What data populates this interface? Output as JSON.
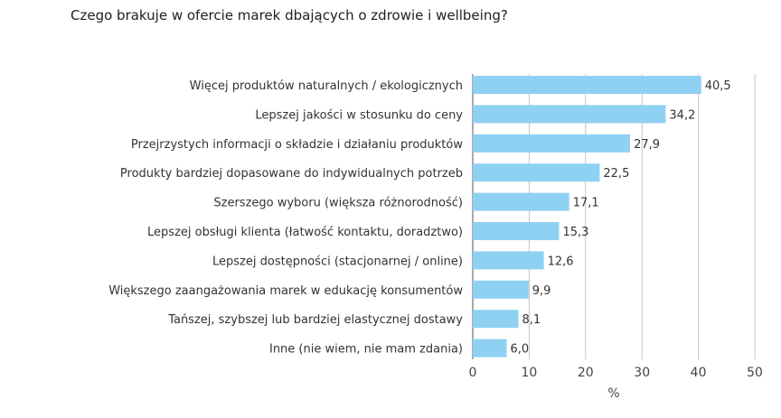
{
  "chart_data": {
    "type": "bar",
    "orientation": "horizontal",
    "title": "Czego brakuje w ofercie marek dbających o zdrowie i wellbeing?",
    "xlabel": "%",
    "ylabel": "",
    "xlim": [
      0,
      50
    ],
    "xticks": [
      "0",
      "10",
      "20",
      "30",
      "40",
      "50"
    ],
    "grid": true,
    "bar_color": "#8fd1f3",
    "categories": [
      "Więcej produktów naturalnych / ekologicznych",
      "Lepszej jakości w stosunku do ceny",
      "Przejrzystych informacji o składzie i działaniu produktów",
      "Produkty bardziej dopasowane do indywidualnych potrzeb",
      "Szerszego wyboru (większa różnorodność)",
      "Lepszej obsługi klienta (łatwość kontaktu, doradztwo)",
      "Lepszej dostępności (stacjonarnej / online)",
      "Większego zaangażowania marek w edukację konsumentów",
      "Tańszej, szybszej lub bardziej elastycznej dostawy",
      "Inne (nie wiem, nie mam zdania)"
    ],
    "values": [
      40.5,
      34.2,
      27.9,
      22.5,
      17.1,
      15.3,
      12.6,
      9.9,
      8.1,
      6.0
    ],
    "value_labels": [
      "40,5",
      "34,2",
      "27,9",
      "22,5",
      "17,1",
      "15,3",
      "12,6",
      "9,9",
      "8,1",
      "6,0"
    ]
  }
}
